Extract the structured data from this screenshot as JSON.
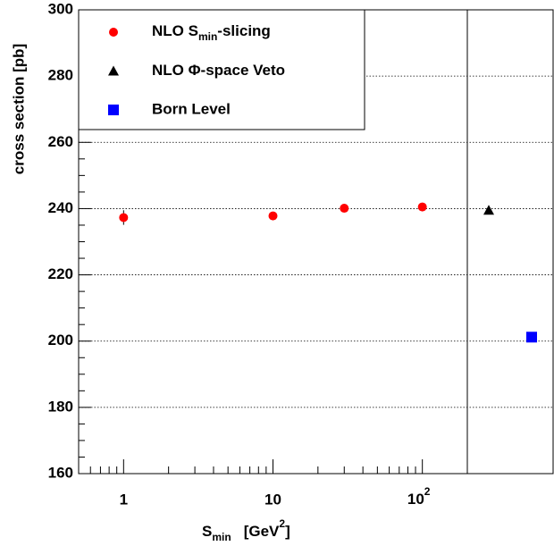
{
  "chart_data": {
    "type": "scatter",
    "ylabel": "cross section  [pb]",
    "xlabel": [
      "S",
      "min",
      "[GeV",
      "2",
      "]"
    ],
    "log_x": true,
    "xlim": [
      0.5,
      200
    ],
    "xticks": [
      1,
      10,
      {
        "value": 100,
        "label": [
          "10",
          "2"
        ]
      }
    ],
    "xminorticks": [
      0.6,
      0.7,
      0.8,
      0.9,
      2,
      3,
      4,
      5,
      6,
      7,
      8,
      9,
      20,
      30,
      40,
      50,
      60,
      70,
      80,
      90
    ],
    "ylim": [
      160,
      300
    ],
    "yticks": [
      160,
      180,
      200,
      220,
      240,
      260,
      280,
      300
    ],
    "yminorticks": [
      165,
      170,
      175,
      185,
      190,
      195,
      205,
      210,
      215,
      225,
      230,
      235,
      245,
      250,
      255,
      265,
      270,
      275,
      285,
      290,
      295
    ],
    "grid": "y",
    "legend": "upper left",
    "series": [
      {
        "name": [
          "NLO S",
          "min",
          "-slicing"
        ],
        "color": "#ff0000",
        "marker": "circle",
        "x": [
          1,
          10,
          30,
          100
        ],
        "values": [
          237.3,
          237.8,
          240.1,
          240.5
        ],
        "errors": [
          2.2,
          null,
          null,
          null
        ]
      },
      {
        "name": "NLO Φ-space Veto",
        "color": "#000000",
        "marker": "triangle",
        "values": [
          239.5
        ]
      },
      {
        "name": "Born Level",
        "color": "#0000ff",
        "marker": "square",
        "values": [
          201.2
        ]
      }
    ]
  }
}
